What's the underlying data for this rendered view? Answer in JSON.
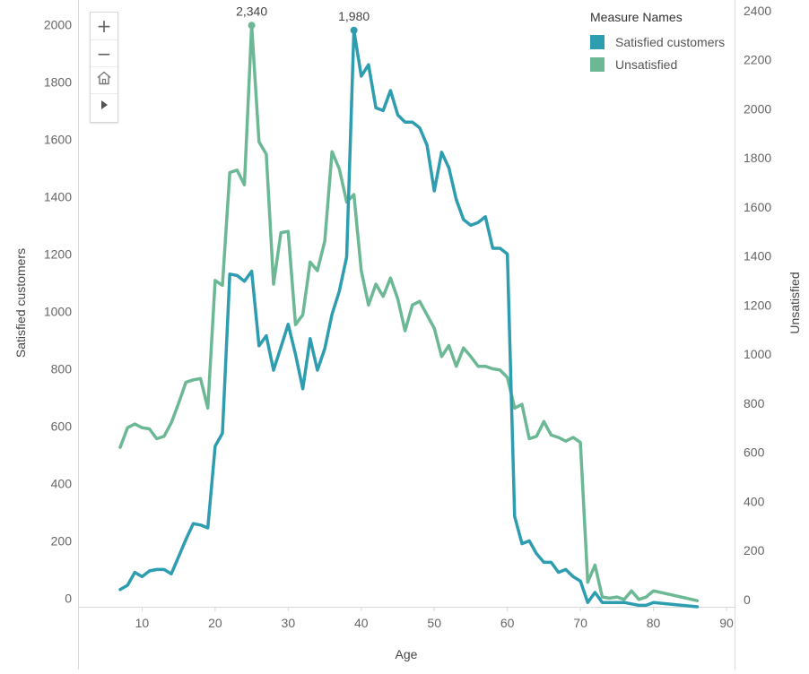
{
  "legend": {
    "title": "Measure Names",
    "items": [
      {
        "label": "Satisfied customers",
        "color": "#2e9db0"
      },
      {
        "label": "Unsatisfied",
        "color": "#6cb894"
      }
    ]
  },
  "toolbar": {
    "zoom_in_icon": "plus-icon",
    "zoom_out_icon": "minus-icon",
    "home_icon": "home-icon",
    "pan_icon": "play-icon"
  },
  "chart_data": {
    "type": "line",
    "xlabel": "Age",
    "ylabel": "Satisfied customers",
    "y2label": "Unsatisfied",
    "xlim": [
      0,
      90
    ],
    "xticks": [
      10,
      20,
      30,
      40,
      50,
      60,
      70,
      80,
      90
    ],
    "ylim": [
      -30,
      2070
    ],
    "yticks": [
      0,
      200,
      400,
      600,
      800,
      1000,
      1200,
      1400,
      1600,
      1800,
      2000
    ],
    "y2lim": [
      -30,
      2425
    ],
    "y2ticks": [
      0,
      200,
      400,
      600,
      800,
      1000,
      1200,
      1400,
      1600,
      1800,
      2000,
      2200,
      2400
    ],
    "grid": false,
    "legend_position": "top-right",
    "annotations": [
      {
        "series": "Unsatisfied",
        "x": 25,
        "y": 2340,
        "label": "2,340"
      },
      {
        "series": "Satisfied customers",
        "x": 39,
        "y": 1980,
        "label": "1,980"
      }
    ],
    "series": [
      {
        "name": "Satisfied customers",
        "axis": "left",
        "color": "#2e9db0",
        "x": [
          7,
          8,
          9,
          10,
          11,
          12,
          13,
          14,
          15,
          16,
          17,
          18,
          19,
          20,
          21,
          22,
          23,
          24,
          25,
          26,
          27,
          28,
          29,
          30,
          31,
          32,
          33,
          34,
          35,
          36,
          37,
          38,
          39,
          40,
          41,
          42,
          43,
          44,
          45,
          46,
          47,
          48,
          49,
          50,
          51,
          52,
          53,
          54,
          55,
          56,
          57,
          58,
          59,
          60,
          61,
          62,
          63,
          64,
          65,
          66,
          67,
          68,
          69,
          70,
          71,
          72,
          73,
          74,
          75,
          76,
          77,
          78,
          79,
          80,
          86
        ],
        "values": [
          30,
          45,
          90,
          75,
          95,
          100,
          100,
          85,
          145,
          205,
          260,
          255,
          245,
          530,
          575,
          1130,
          1125,
          1105,
          1140,
          880,
          915,
          795,
          875,
          955,
          850,
          730,
          905,
          795,
          870,
          990,
          1070,
          1190,
          1980,
          1820,
          1860,
          1710,
          1700,
          1770,
          1685,
          1660,
          1660,
          1640,
          1580,
          1420,
          1555,
          1500,
          1390,
          1320,
          1300,
          1310,
          1330,
          1220,
          1220,
          1200,
          285,
          190,
          200,
          155,
          125,
          125,
          90,
          100,
          75,
          60,
          -15,
          20,
          -15,
          -15,
          -15,
          -15,
          -20,
          -25,
          -25,
          -15,
          -30
        ]
      },
      {
        "name": "Unsatisfied",
        "axis": "right",
        "color": "#6cb894",
        "x": [
          7,
          8,
          9,
          10,
          11,
          12,
          13,
          14,
          15,
          16,
          17,
          18,
          19,
          20,
          21,
          22,
          23,
          24,
          25,
          26,
          27,
          28,
          29,
          30,
          31,
          32,
          33,
          34,
          35,
          36,
          37,
          38,
          39,
          40,
          41,
          42,
          43,
          44,
          45,
          46,
          47,
          48,
          49,
          50,
          51,
          52,
          53,
          54,
          55,
          56,
          57,
          58,
          59,
          60,
          61,
          62,
          63,
          64,
          65,
          66,
          67,
          68,
          69,
          70,
          71,
          72,
          73,
          74,
          75,
          76,
          77,
          78,
          79,
          80,
          86
        ],
        "values": [
          620,
          700,
          715,
          700,
          695,
          655,
          665,
          720,
          800,
          885,
          895,
          900,
          780,
          1300,
          1280,
          1740,
          1750,
          1690,
          2340,
          1865,
          1815,
          1285,
          1495,
          1500,
          1120,
          1160,
          1375,
          1340,
          1460,
          1825,
          1755,
          1620,
          1650,
          1340,
          1200,
          1285,
          1235,
          1310,
          1225,
          1095,
          1200,
          1215,
          1160,
          1105,
          990,
          1035,
          950,
          1025,
          990,
          950,
          950,
          940,
          935,
          905,
          780,
          795,
          655,
          665,
          725,
          670,
          660,
          645,
          660,
          640,
          70,
          140,
          10,
          5,
          10,
          0,
          35,
          0,
          10,
          35,
          -5
        ]
      }
    ]
  }
}
